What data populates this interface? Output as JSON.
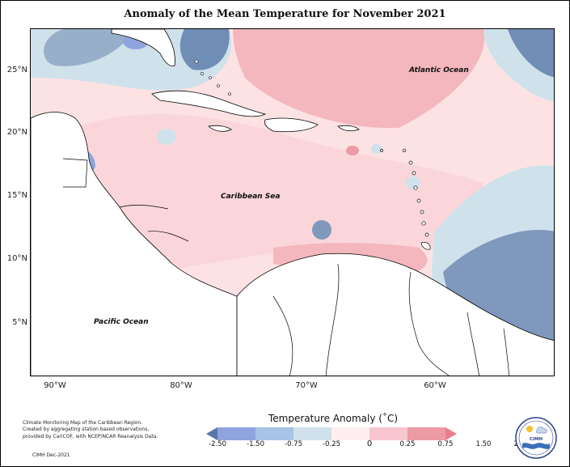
{
  "map": {
    "title": "Anomaly of the Mean Temperature for November 2021",
    "y_axis_labels": [
      "25°N",
      "20°N",
      "15°N",
      "10°N",
      "5°N"
    ],
    "x_axis_labels": [
      "90°W",
      "80°W",
      "70°W",
      "60°W"
    ],
    "regions": {
      "atlantic": "Atlantic Ocean",
      "caribbean": "Caribbean Sea",
      "pacific": "Pacific Ocean"
    }
  },
  "legend": {
    "title": "Temperature Anomaly (˚C)",
    "ticks": [
      "-2.50",
      "-1.50",
      "-0.75",
      "-0.25",
      "0",
      "0.25",
      "0.75",
      "1.50",
      "2.50"
    ],
    "colors": [
      "#5b76a8",
      "#8fa4de",
      "#a8c4e6",
      "#cfe2ec",
      "#ffeef0",
      "#f8c6ce",
      "#ec9aa3",
      "#ea7f8c"
    ]
  },
  "footer": {
    "note_lines": [
      "Climate Monitoring Map of the Caribbean Region.",
      "Created by aggregating station based observations,",
      "provided by CariCOF, with NCEP/NCAR Reanalysis Data."
    ],
    "credit": "CIMH Dec-2021"
  },
  "logo": {
    "text": "CIMH"
  }
}
